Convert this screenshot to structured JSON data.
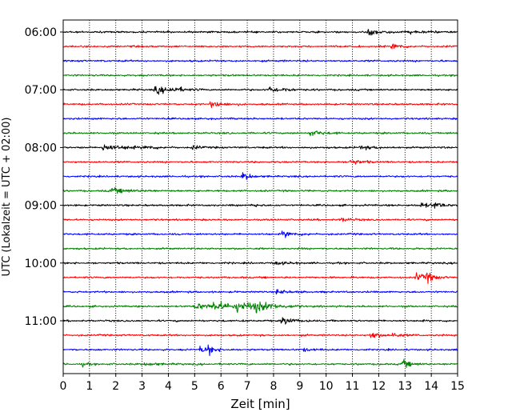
{
  "chart_data": {
    "type": "line",
    "title": "",
    "xlabel": "Zeit  [min]",
    "ylabel": "UTC (Lokalzeit = UTC + 02:00)",
    "xlim": [
      0,
      15
    ],
    "x_ticks": [
      "0",
      "1",
      "2",
      "3",
      "4",
      "5",
      "6",
      "7",
      "8",
      "9",
      "10",
      "11",
      "12",
      "13",
      "14",
      "15"
    ],
    "y_tick_labels": [
      "06:00",
      "07:00",
      "08:00",
      "09:00",
      "10:00",
      "11:00"
    ],
    "y_tick_rows": [
      0,
      4,
      8,
      12,
      16,
      20
    ],
    "grid": "vertical-dotted",
    "legend": "none",
    "colors_cycle": [
      "#000000",
      "#ff0000",
      "#0000ff",
      "#008000"
    ],
    "rows": [
      {
        "start": "06:00",
        "color": "#000000",
        "events": [
          {
            "t": 11.6,
            "amp": 0.45,
            "dur": 0.5
          },
          {
            "t": 13.2,
            "amp": 0.15,
            "dur": 0.6
          }
        ]
      },
      {
        "start": "06:15",
        "color": "#ff0000",
        "events": [
          {
            "t": 12.5,
            "amp": 0.5,
            "dur": 0.3
          }
        ]
      },
      {
        "start": "06:30",
        "color": "#0000ff",
        "events": []
      },
      {
        "start": "06:45",
        "color": "#008000",
        "events": []
      },
      {
        "start": "07:00",
        "color": "#000000",
        "events": [
          {
            "t": 3.5,
            "amp": 0.5,
            "dur": 0.6
          },
          {
            "t": 4.1,
            "amp": 0.25,
            "dur": 0.4
          },
          {
            "t": 7.8,
            "amp": 0.5,
            "dur": 0.3
          },
          {
            "t": 8.2,
            "amp": 0.2,
            "dur": 0.5
          }
        ]
      },
      {
        "start": "07:15",
        "color": "#ff0000",
        "events": [
          {
            "t": 5.6,
            "amp": 0.4,
            "dur": 0.5
          }
        ]
      },
      {
        "start": "07:30",
        "color": "#0000ff",
        "events": []
      },
      {
        "start": "07:45",
        "color": "#008000",
        "events": [
          {
            "t": 9.4,
            "amp": 0.45,
            "dur": 0.4
          }
        ]
      },
      {
        "start": "08:00",
        "color": "#000000",
        "events": [
          {
            "t": 1.5,
            "amp": 0.45,
            "dur": 0.8
          },
          {
            "t": 3.1,
            "amp": 0.2,
            "dur": 0.4
          },
          {
            "t": 4.9,
            "amp": 0.25,
            "dur": 0.3
          },
          {
            "t": 11.3,
            "amp": 0.25,
            "dur": 0.5
          }
        ]
      },
      {
        "start": "08:15",
        "color": "#ff0000",
        "events": [
          {
            "t": 10.9,
            "amp": 0.4,
            "dur": 0.4
          }
        ]
      },
      {
        "start": "08:30",
        "color": "#0000ff",
        "events": [
          {
            "t": 6.8,
            "amp": 0.55,
            "dur": 0.3
          }
        ]
      },
      {
        "start": "08:45",
        "color": "#008000",
        "events": [
          {
            "t": 1.8,
            "amp": 0.35,
            "dur": 0.7
          }
        ]
      },
      {
        "start": "09:00",
        "color": "#000000",
        "events": [
          {
            "t": 7.1,
            "amp": 0.2,
            "dur": 0.3
          },
          {
            "t": 13.6,
            "amp": 0.4,
            "dur": 0.3
          },
          {
            "t": 14.1,
            "amp": 0.45,
            "dur": 0.3
          }
        ]
      },
      {
        "start": "09:15",
        "color": "#ff0000",
        "events": [
          {
            "t": 10.6,
            "amp": 0.3,
            "dur": 0.3
          }
        ]
      },
      {
        "start": "09:30",
        "color": "#0000ff",
        "events": [
          {
            "t": 8.3,
            "amp": 0.4,
            "dur": 0.5
          }
        ]
      },
      {
        "start": "09:45",
        "color": "#008000",
        "events": []
      },
      {
        "start": "10:00",
        "color": "#000000",
        "events": [
          {
            "t": 8.1,
            "amp": 0.25,
            "dur": 0.4
          }
        ]
      },
      {
        "start": "10:15",
        "color": "#ff0000",
        "events": [
          {
            "t": 13.4,
            "amp": 0.6,
            "dur": 0.3
          },
          {
            "t": 13.8,
            "amp": 0.65,
            "dur": 0.3
          }
        ]
      },
      {
        "start": "10:30",
        "color": "#0000ff",
        "events": [
          {
            "t": 8.1,
            "amp": 0.3,
            "dur": 0.4
          }
        ]
      },
      {
        "start": "10:45",
        "color": "#008000",
        "events": [
          {
            "t": 5.0,
            "amp": 0.45,
            "dur": 0.6
          },
          {
            "t": 5.7,
            "amp": 0.65,
            "dur": 0.6
          },
          {
            "t": 6.6,
            "amp": 0.6,
            "dur": 0.9
          },
          {
            "t": 7.3,
            "amp": 0.5,
            "dur": 0.6
          }
        ]
      },
      {
        "start": "11:00",
        "color": "#000000",
        "events": [
          {
            "t": 8.3,
            "amp": 0.55,
            "dur": 0.4
          }
        ]
      },
      {
        "start": "11:15",
        "color": "#ff0000",
        "events": [
          {
            "t": 11.7,
            "amp": 0.55,
            "dur": 0.3
          },
          {
            "t": 12.5,
            "amp": 0.3,
            "dur": 0.4
          }
        ]
      },
      {
        "start": "11:30",
        "color": "#0000ff",
        "events": [
          {
            "t": 5.2,
            "amp": 0.5,
            "dur": 0.3
          },
          {
            "t": 5.5,
            "amp": 0.5,
            "dur": 0.3
          },
          {
            "t": 9.1,
            "amp": 0.2,
            "dur": 0.4
          }
        ]
      },
      {
        "start": "11:45",
        "color": "#008000",
        "events": [
          {
            "t": 0.7,
            "amp": 0.25,
            "dur": 0.2
          },
          {
            "t": 3.1,
            "amp": 0.2,
            "dur": 0.4
          },
          {
            "t": 12.9,
            "amp": 0.55,
            "dur": 0.3
          }
        ]
      }
    ]
  }
}
